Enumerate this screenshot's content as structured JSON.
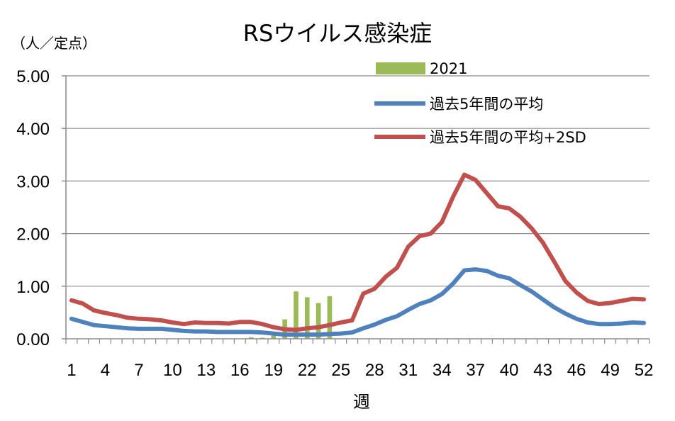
{
  "chart_data": {
    "type": "bar+line",
    "title": "RSウイルス感染症",
    "unit_label": "（人／定点）",
    "xlabel": "週",
    "ylim": [
      0,
      5
    ],
    "yticks": [
      "0.00",
      "1.00",
      "2.00",
      "3.00",
      "4.00",
      "5.00"
    ],
    "xticks": [
      "1",
      "4",
      "7",
      "10",
      "13",
      "16",
      "19",
      "22",
      "25",
      "28",
      "31",
      "34",
      "37",
      "40",
      "43",
      "46",
      "49",
      "52"
    ],
    "weeks": [
      1,
      2,
      3,
      4,
      5,
      6,
      7,
      8,
      9,
      10,
      11,
      12,
      13,
      14,
      15,
      16,
      17,
      18,
      19,
      20,
      21,
      22,
      23,
      24,
      25,
      26,
      27,
      28,
      29,
      30,
      31,
      32,
      33,
      34,
      35,
      36,
      37,
      38,
      39,
      40,
      41,
      42,
      43,
      44,
      45,
      46,
      47,
      48,
      49,
      50,
      51,
      52
    ],
    "grid": "horizontal",
    "legend_position": "top-right",
    "bars": {
      "name": "2021",
      "color": "#9bbb59",
      "weeks": [
        17,
        18,
        19,
        20,
        21,
        22,
        23,
        24
      ],
      "values": [
        0.03,
        0.02,
        0.1,
        0.37,
        0.9,
        0.79,
        0.68,
        0.81
      ]
    },
    "series": [
      {
        "name": "過去5年間の平均",
        "color": "#4f81bd",
        "values": [
          0.38,
          0.32,
          0.26,
          0.24,
          0.22,
          0.2,
          0.19,
          0.19,
          0.19,
          0.17,
          0.15,
          0.14,
          0.14,
          0.13,
          0.13,
          0.13,
          0.13,
          0.12,
          0.1,
          0.08,
          0.08,
          0.08,
          0.08,
          0.09,
          0.1,
          0.12,
          0.2,
          0.27,
          0.36,
          0.43,
          0.55,
          0.66,
          0.73,
          0.85,
          1.05,
          1.3,
          1.32,
          1.29,
          1.2,
          1.15,
          1.02,
          0.9,
          0.75,
          0.6,
          0.48,
          0.38,
          0.31,
          0.28,
          0.28,
          0.29,
          0.31,
          0.3
        ]
      },
      {
        "name": "過去5年間の平均+2SD",
        "color": "#c0504d",
        "values": [
          0.73,
          0.67,
          0.54,
          0.49,
          0.45,
          0.4,
          0.38,
          0.37,
          0.35,
          0.31,
          0.28,
          0.31,
          0.3,
          0.3,
          0.29,
          0.32,
          0.32,
          0.28,
          0.22,
          0.18,
          0.17,
          0.2,
          0.22,
          0.26,
          0.31,
          0.35,
          0.86,
          0.95,
          1.18,
          1.35,
          1.75,
          1.95,
          2.0,
          2.22,
          2.7,
          3.12,
          3.02,
          2.77,
          2.52,
          2.48,
          2.32,
          2.1,
          1.83,
          1.47,
          1.1,
          0.88,
          0.72,
          0.66,
          0.68,
          0.72,
          0.76,
          0.75
        ]
      }
    ]
  }
}
